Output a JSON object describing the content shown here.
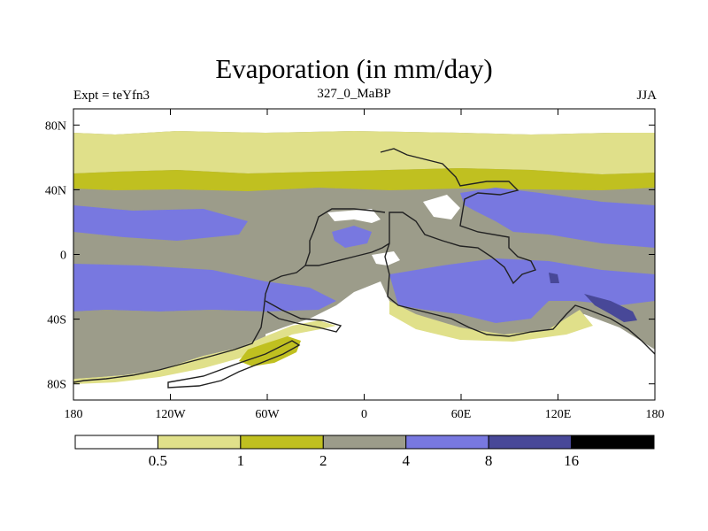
{
  "title": "Evaporation (in mm/day)",
  "left_label": "Expt = teYfn3",
  "center_label": "327_0_MaBP",
  "right_label": "JJA",
  "map": {
    "projection": "cylindrical-equidistant",
    "lon_range": [
      -180,
      180
    ],
    "lat_range": [
      -90,
      90
    ],
    "lat_ticks": [
      {
        "value": 80,
        "label": "80N"
      },
      {
        "value": 40,
        "label": "40N"
      },
      {
        "value": 0,
        "label": "0"
      },
      {
        "value": -40,
        "label": "40S"
      },
      {
        "value": -80,
        "label": "80S"
      }
    ],
    "lon_ticks": [
      {
        "value": -180,
        "label": "180"
      },
      {
        "value": -120,
        "label": "120W"
      },
      {
        "value": -60,
        "label": "60W"
      },
      {
        "value": 0,
        "label": "0"
      },
      {
        "value": 60,
        "label": "60E"
      },
      {
        "value": 120,
        "label": "120E"
      },
      {
        "value": 180,
        "label": "180"
      }
    ]
  },
  "colorbar": {
    "colors": [
      "#ffffff",
      "#e0e08a",
      "#c0c020",
      "#9c9c8a",
      "#7878e0",
      "#484898",
      "#000000"
    ],
    "labels": [
      "0.5",
      "1",
      "2",
      "4",
      "8",
      "16"
    ]
  },
  "colors": {
    "lt0_5": "#ffffff",
    "c0_5_1": "#e0e08a",
    "c1_2": "#c0c020",
    "c2_4": "#9c9c8a",
    "c4_8": "#7878e0",
    "c8_16": "#484898",
    "gt16": "#000000"
  }
}
